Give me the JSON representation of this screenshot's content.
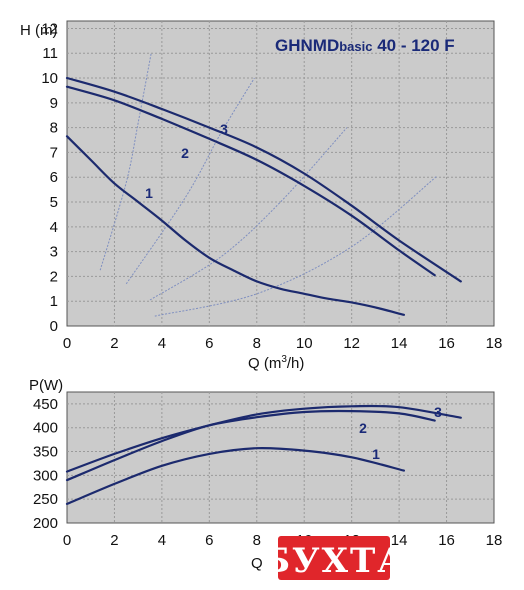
{
  "chart_data": [
    {
      "type": "line",
      "title": "GHNMDbasic 40 - 120 F",
      "title_main": "GHNMD",
      "title_small": "basic",
      "title_rest": " 40 - 120 F",
      "ylabel": "H (m)",
      "xlabel": "Q (m³/h)",
      "xlabel_main": "Q (m",
      "xlabel_sup": "3",
      "xlabel_end": "/h)",
      "xlim": [
        0,
        18
      ],
      "ylim": [
        0,
        12.3
      ],
      "xticks": [
        0,
        2,
        4,
        6,
        8,
        10,
        12,
        14,
        16,
        18
      ],
      "yticks": [
        0,
        1,
        2,
        3,
        4,
        5,
        6,
        7,
        8,
        9,
        10,
        11,
        12
      ],
      "grid": true,
      "background": "#cbcbcb",
      "curve_color": "#1c2a6e",
      "series": [
        {
          "name": "1",
          "points": [
            [
              0,
              7.65
            ],
            [
              1,
              6.7
            ],
            [
              2,
              5.75
            ],
            [
              3,
              5.0
            ],
            [
              4,
              4.25
            ],
            [
              5,
              3.45
            ],
            [
              6,
              2.75
            ],
            [
              7,
              2.25
            ],
            [
              8,
              1.8
            ],
            [
              9,
              1.5
            ],
            [
              10,
              1.3
            ],
            [
              11,
              1.1
            ],
            [
              12,
              0.95
            ],
            [
              13,
              0.75
            ],
            [
              14.2,
              0.45
            ]
          ]
        },
        {
          "name": "2",
          "points": [
            [
              0,
              9.65
            ],
            [
              2,
              9.1
            ],
            [
              4,
              8.35
            ],
            [
              6,
              7.55
            ],
            [
              8,
              6.7
            ],
            [
              10,
              5.65
            ],
            [
              12,
              4.45
            ],
            [
              14,
              3.05
            ],
            [
              15.5,
              2.05
            ]
          ]
        },
        {
          "name": "3",
          "points": [
            [
              0,
              10.0
            ],
            [
              2,
              9.45
            ],
            [
              4,
              8.75
            ],
            [
              6,
              8.0
            ],
            [
              8,
              7.2
            ],
            [
              10,
              6.15
            ],
            [
              12,
              4.85
            ],
            [
              14,
              3.45
            ],
            [
              16.6,
              1.8
            ]
          ]
        }
      ],
      "system_curves": [
        [
          [
            1.4,
            2.25
          ],
          [
            2.5,
            5.8
          ],
          [
            3.0,
            8.2
          ],
          [
            3.55,
            11.0
          ]
        ],
        [
          [
            2.5,
            1.7
          ],
          [
            5.0,
            5.2
          ],
          [
            6.5,
            7.8
          ],
          [
            7.9,
            10.0
          ]
        ],
        [
          [
            3.5,
            1.05
          ],
          [
            6.5,
            2.8
          ],
          [
            9.0,
            5.0
          ],
          [
            11.8,
            8.0
          ]
        ],
        [
          [
            3.7,
            0.4
          ],
          [
            8.0,
            1.3
          ],
          [
            12.0,
            3.2
          ],
          [
            15.6,
            6.05
          ]
        ]
      ]
    },
    {
      "type": "line",
      "ylabel": "P(W)",
      "xlabel": "Q (",
      "xlim": [
        0,
        18
      ],
      "ylim": [
        200,
        475
      ],
      "xticks": [
        0,
        2,
        4,
        6,
        8,
        10,
        12,
        14,
        16,
        18
      ],
      "yticks": [
        200,
        250,
        300,
        350,
        400,
        450
      ],
      "grid": true,
      "background": "#cbcbcb",
      "curve_color": "#1c2a6e",
      "series": [
        {
          "name": "1",
          "points": [
            [
              0,
              240
            ],
            [
              2,
              282
            ],
            [
              4,
              320
            ],
            [
              6,
              345
            ],
            [
              8,
              357
            ],
            [
              10,
              352
            ],
            [
              12,
              338
            ],
            [
              14.2,
              310
            ]
          ]
        },
        {
          "name": "2",
          "points": [
            [
              0,
              290
            ],
            [
              2,
              332
            ],
            [
              4,
              372
            ],
            [
              6,
              405
            ],
            [
              8,
              422
            ],
            [
              10,
              433
            ],
            [
              12,
              435
            ],
            [
              14,
              430
            ],
            [
              15.5,
              415
            ]
          ]
        },
        {
          "name": "3",
          "points": [
            [
              0,
              308
            ],
            [
              2,
              345
            ],
            [
              4,
              378
            ],
            [
              6,
              405
            ],
            [
              8,
              428
            ],
            [
              10,
              440
            ],
            [
              12,
              445
            ],
            [
              14,
              443
            ],
            [
              16.6,
              421
            ]
          ]
        }
      ]
    }
  ],
  "watermark": {
    "text": "БУХТА",
    "color": "#e0262b"
  }
}
